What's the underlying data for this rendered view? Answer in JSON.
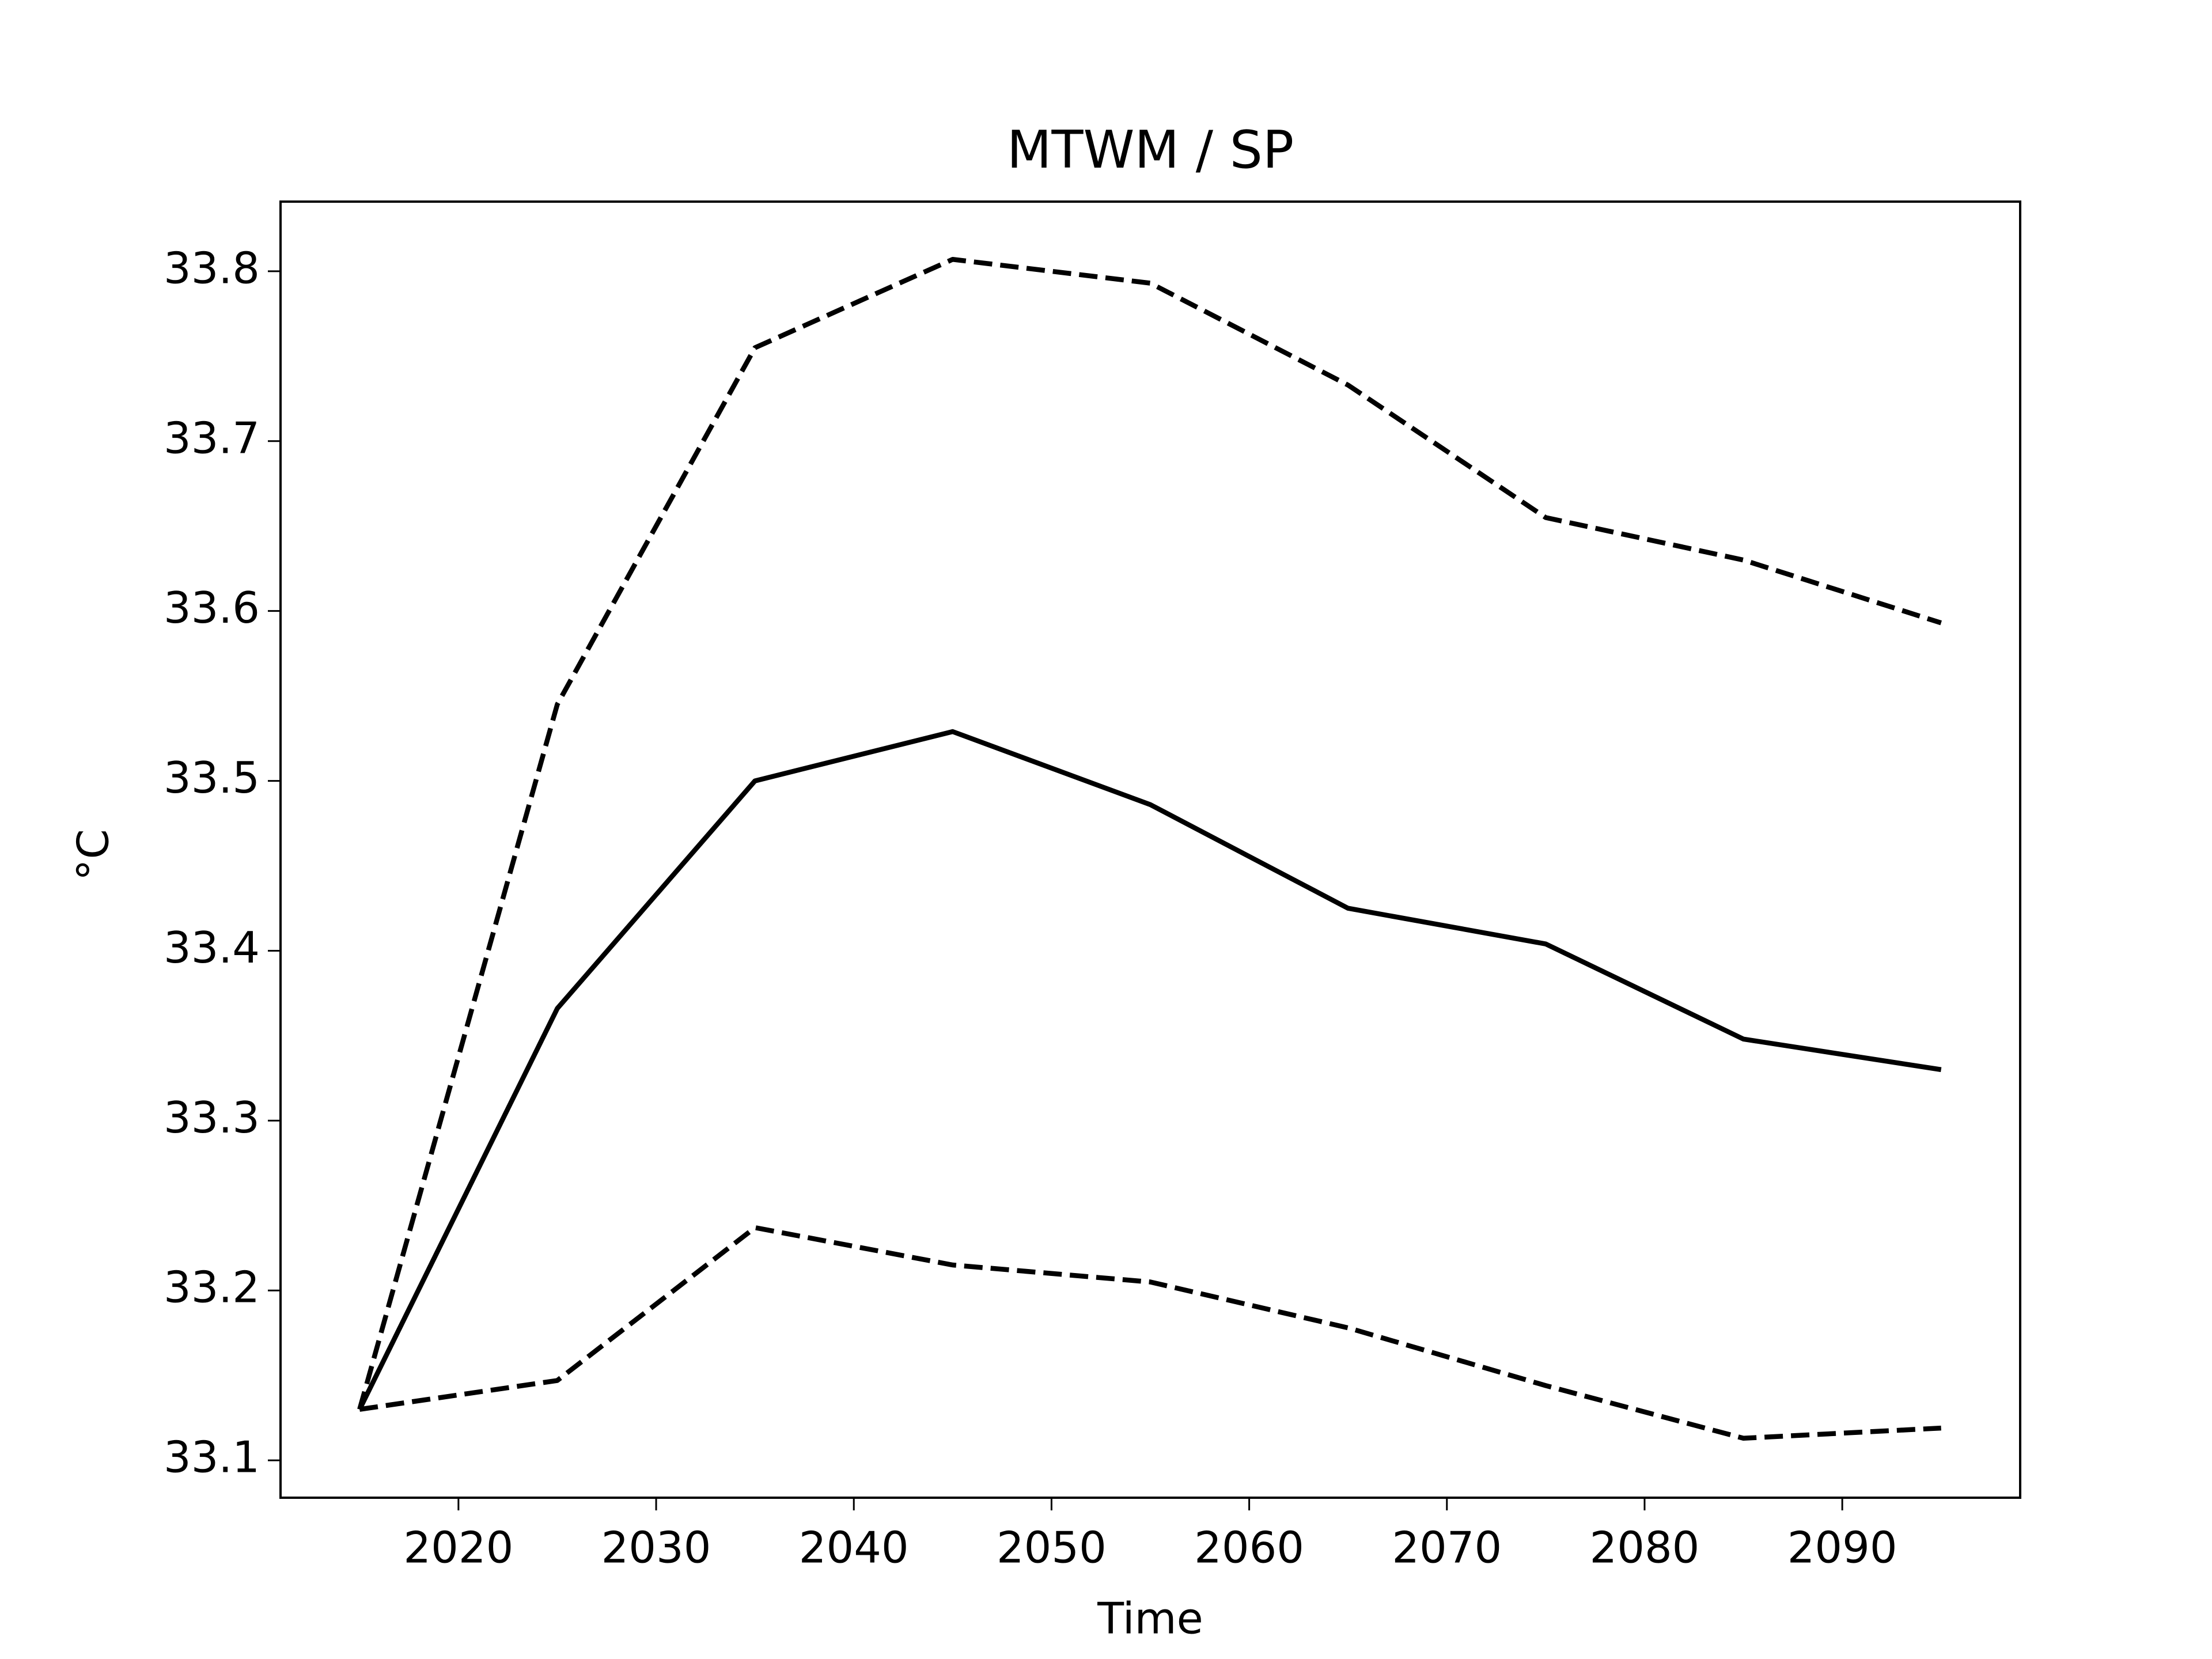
{
  "chart_data": {
    "type": "line",
    "title": "MTWM / SP",
    "xlabel": "Time",
    "ylabel": "°C",
    "x": [
      2015,
      2025,
      2035,
      2045,
      2055,
      2065,
      2075,
      2085,
      2095
    ],
    "series": [
      {
        "color": "#000000",
        "dashed": false,
        "values": [
          33.13,
          33.366,
          33.5,
          33.529,
          33.486,
          33.425,
          33.404,
          33.348,
          33.33
        ]
      },
      {
        "color": "#000000",
        "dashed": true,
        "values": [
          33.13,
          33.545,
          33.755,
          33.807,
          33.793,
          33.733,
          33.655,
          33.63,
          33.593
        ]
      },
      {
        "color": "#000000",
        "dashed": true,
        "values": [
          33.13,
          33.147,
          33.237,
          33.215,
          33.205,
          33.178,
          33.144,
          33.113,
          33.119
        ]
      }
    ],
    "xlim": [
      2011,
      2099
    ],
    "xticks": [
      2020,
      2030,
      2040,
      2050,
      2060,
      2070,
      2080,
      2090
    ],
    "ylim": [
      33.078,
      33.841
    ],
    "yticks": [
      33.1,
      33.2,
      33.3,
      33.4,
      33.5,
      33.6,
      33.7,
      33.8
    ],
    "grid": false
  }
}
